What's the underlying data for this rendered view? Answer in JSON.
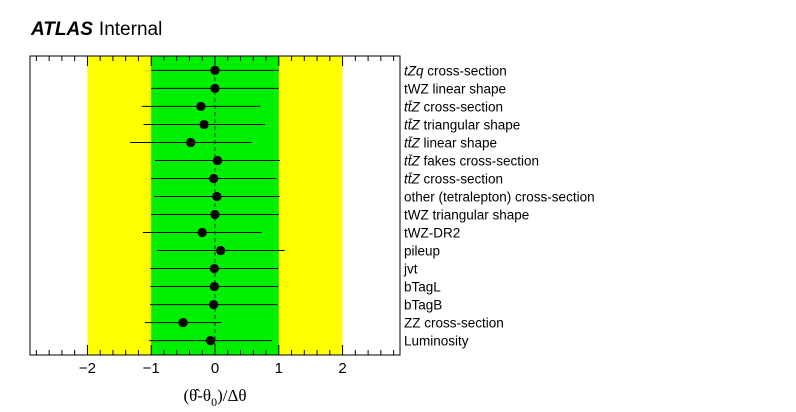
{
  "header": {
    "atlas": "ATLAS",
    "status": "Internal"
  },
  "colors": {
    "outer_band": "#ffff00",
    "inner_band": "#00ee00",
    "points": "#000000"
  },
  "chart_data": {
    "type": "scatter",
    "title": "",
    "xlabel": "(θ̂-θ₀)/Δθ",
    "xlabel_parts": {
      "open": "(",
      "theta_hat": "θ̂",
      "minus": "-θ",
      "sub": "0",
      "close": ")/Δθ"
    },
    "xlim": [
      -2.9,
      2.9
    ],
    "xticks": [
      -2,
      -1,
      0,
      1,
      2
    ],
    "xtick_labels": [
      "−2",
      "−1",
      "0",
      "1",
      "2"
    ],
    "bands": [
      {
        "name": "±2σ",
        "range": [
          -2,
          2
        ],
        "color": "#ffff00"
      },
      {
        "name": "±1σ",
        "range": [
          -1,
          1
        ],
        "color": "#00ee00"
      }
    ],
    "reference_line": 0,
    "orientation": "horizontal",
    "points": [
      {
        "label": "tZq cross-section",
        "value": 0.0,
        "err_lo": 1.0,
        "err_hi": 1.0
      },
      {
        "label": "tWZ linear shape",
        "value": 0.0,
        "err_lo": 1.0,
        "err_hi": 1.0
      },
      {
        "label": "tt̄Z cross-section",
        "value": -0.22,
        "err_lo": 0.93,
        "err_hi": 0.93
      },
      {
        "label": "tt̄Z triangular shape",
        "value": -0.17,
        "err_lo": 0.95,
        "err_hi": 0.95
      },
      {
        "label": "tt̄Z linear shape",
        "value": -0.38,
        "err_lo": 0.95,
        "err_hi": 0.95
      },
      {
        "label": "tt̄Z fakes cross-section",
        "value": 0.04,
        "err_lo": 0.98,
        "err_hi": 0.98
      },
      {
        "label": "tt̄Z cross-section",
        "value": -0.02,
        "err_lo": 0.98,
        "err_hi": 0.98
      },
      {
        "label": "other (tetralepton) cross-section",
        "value": 0.03,
        "err_lo": 0.98,
        "err_hi": 0.98
      },
      {
        "label": "tWZ triangular shape",
        "value": 0.0,
        "err_lo": 1.0,
        "err_hi": 1.0
      },
      {
        "label": "tWZ-DR2",
        "value": -0.2,
        "err_lo": 0.93,
        "err_hi": 0.93
      },
      {
        "label": "pileup",
        "value": 0.09,
        "err_lo": 1.0,
        "err_hi": 1.0
      },
      {
        "label": "jvt",
        "value": -0.01,
        "err_lo": 1.0,
        "err_hi": 1.0
      },
      {
        "label": "bTagL",
        "value": -0.01,
        "err_lo": 1.0,
        "err_hi": 1.0
      },
      {
        "label": "bTagB",
        "value": -0.02,
        "err_lo": 1.0,
        "err_hi": 1.0
      },
      {
        "label": "ZZ cross-section",
        "value": -0.5,
        "err_lo": 0.6,
        "err_hi": 0.6
      },
      {
        "label": "Luminosity",
        "value": -0.07,
        "err_lo": 0.96,
        "err_hi": 0.96
      }
    ],
    "label_markup": {
      "tZq cross-section": {
        "italic": "tZq",
        "rest": " cross-section"
      },
      "tt̄Z cross-section": {
        "italic": "tt̄Z",
        "rest": " cross-section"
      },
      "tt̄Z triangular shape": {
        "italic": "tt̄Z",
        "rest": " triangular shape"
      },
      "tt̄Z linear shape": {
        "italic": "tt̄Z",
        "rest": " linear shape"
      },
      "tt̄Z fakes cross-section": {
        "italic": "tt̄Z",
        "rest": " fakes cross-section"
      }
    },
    "grid": false,
    "legend": "none"
  }
}
